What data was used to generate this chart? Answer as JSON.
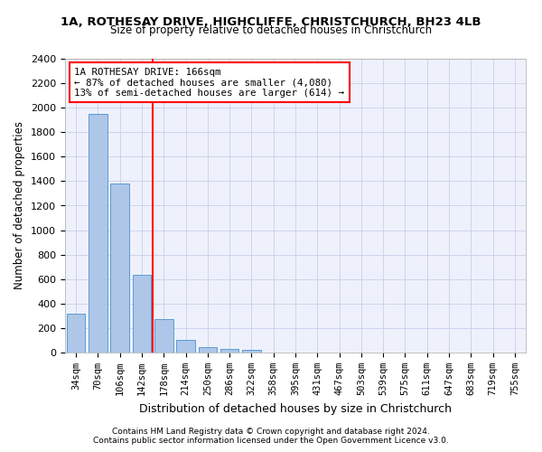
{
  "title1": "1A, ROTHESAY DRIVE, HIGHCLIFFE, CHRISTCHURCH, BH23 4LB",
  "title2": "Size of property relative to detached houses in Christchurch",
  "xlabel": "Distribution of detached houses by size in Christchurch",
  "ylabel": "Number of detached properties",
  "categories": [
    "34sqm",
    "70sqm",
    "106sqm",
    "142sqm",
    "178sqm",
    "214sqm",
    "250sqm",
    "286sqm",
    "322sqm",
    "358sqm",
    "395sqm",
    "431sqm",
    "467sqm",
    "503sqm",
    "539sqm",
    "575sqm",
    "611sqm",
    "647sqm",
    "683sqm",
    "719sqm",
    "755sqm"
  ],
  "values": [
    315,
    1950,
    1380,
    635,
    270,
    100,
    47,
    32,
    22,
    0,
    0,
    0,
    0,
    0,
    0,
    0,
    0,
    0,
    0,
    0,
    0
  ],
  "bar_color": "#aec6e8",
  "bar_edge_color": "#5b9bd5",
  "vline_position": 3.5,
  "vline_color": "red",
  "annotation_text": "1A ROTHESAY DRIVE: 166sqm\n← 87% of detached houses are smaller (4,080)\n13% of semi-detached houses are larger (614) →",
  "annotation_box_color": "white",
  "annotation_box_edge": "red",
  "ylim": [
    0,
    2400
  ],
  "yticks": [
    0,
    200,
    400,
    600,
    800,
    1000,
    1200,
    1400,
    1600,
    1800,
    2000,
    2200,
    2400
  ],
  "footnote1": "Contains HM Land Registry data © Crown copyright and database right 2024.",
  "footnote2": "Contains public sector information licensed under the Open Government Licence v3.0.",
  "bg_color": "#eef1fb",
  "grid_color": "#c8cfe8"
}
